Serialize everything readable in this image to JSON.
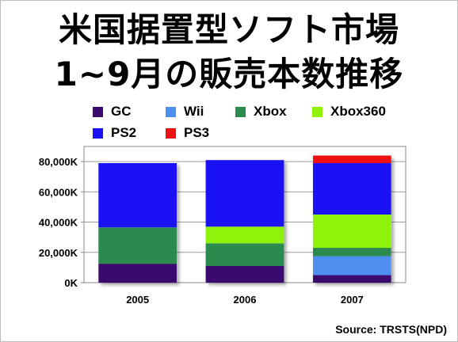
{
  "title_lines": [
    "米国据置型ソフト市場",
    "1~9月の販売本数推移"
  ],
  "source": "Source: TRSTS(NPD)",
  "chart_data": {
    "type": "bar",
    "stacked": true,
    "categories": [
      "2005",
      "2006",
      "2007"
    ],
    "ylim": [
      0,
      90000
    ],
    "yticks": [
      0,
      20000,
      40000,
      60000,
      80000
    ],
    "ytick_labels": [
      "0K",
      "20,000K",
      "40,000K",
      "60,000K",
      "80,000K"
    ],
    "grid": true,
    "legend_position": "top",
    "series": [
      {
        "name": "GC",
        "color": "#3b0a6e",
        "values": [
          12500,
          11000,
          5000
        ]
      },
      {
        "name": "Wii",
        "color": "#4f8ff0",
        "values": [
          0,
          0,
          12500
        ]
      },
      {
        "name": "Xbox",
        "color": "#2b8a4e",
        "values": [
          24000,
          15000,
          5500
        ]
      },
      {
        "name": "Xbox360",
        "color": "#8ff20a",
        "values": [
          0,
          11000,
          22000
        ]
      },
      {
        "name": "PS2",
        "color": "#1a12f5",
        "values": [
          42500,
          44000,
          34000
        ]
      },
      {
        "name": "PS3",
        "color": "#ee1111",
        "values": [
          0,
          0,
          5000
        ]
      }
    ]
  }
}
